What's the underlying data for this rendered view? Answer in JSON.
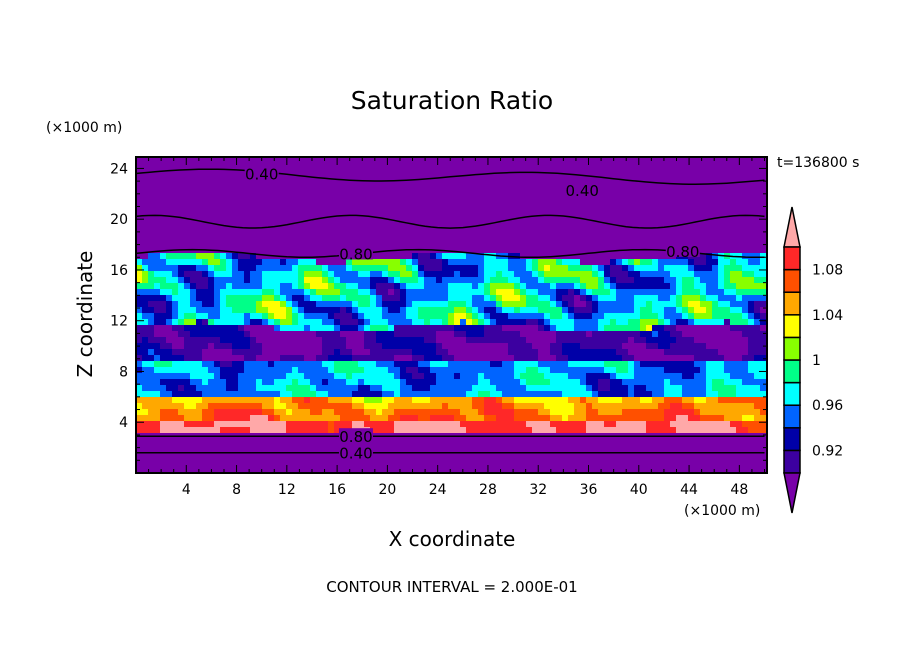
{
  "chart_data": {
    "type": "heatmap",
    "title": "Saturation Ratio",
    "xlabel": "X coordinate",
    "ylabel": "Z coordinate",
    "x_unit": "(×1000 m)",
    "y_unit": "(×1000 m)",
    "xlim": [
      0,
      50.2
    ],
    "ylim": [
      0,
      24.9
    ],
    "xticks": [
      "4",
      "8",
      "12",
      "16",
      "20",
      "24",
      "28",
      "32",
      "36",
      "40",
      "44",
      "48"
    ],
    "yticks": [
      "4",
      "8",
      "12",
      "16",
      "20",
      "24"
    ],
    "time_label": "t=136800 s",
    "footer": "CONTOUR INTERVAL = 2.000E-01",
    "colorbar": {
      "levels": [
        0.9,
        0.92,
        0.94,
        0.96,
        0.98,
        1.0,
        1.02,
        1.04,
        1.06,
        1.08,
        1.1
      ],
      "colors": [
        "#3c00a0",
        "#0000a8",
        "#0064ff",
        "#00ffff",
        "#00ff88",
        "#88ff00",
        "#ffff00",
        "#ffa800",
        "#ff5000",
        "#ff2828"
      ],
      "under_color": "#7800a8",
      "over_color": "#ffa8a8",
      "labels": [
        "1.08",
        "1.04",
        "1",
        "0.96",
        "0.92"
      ],
      "label_values": [
        1.08,
        1.04,
        1.0,
        0.96,
        0.92
      ]
    },
    "contour_labels": [
      {
        "text": "0.40",
        "x": 10,
        "z": 23.6
      },
      {
        "text": "0.40",
        "x": 35.5,
        "z": 22.3
      },
      {
        "text": "0.80",
        "x": 17.5,
        "z": 17.3
      },
      {
        "text": "0.80",
        "x": 43.5,
        "z": 17.5
      },
      {
        "text": "0.80",
        "x": 17.5,
        "z": 2.9
      },
      {
        "text": "0.40",
        "x": 17.5,
        "z": 1.6
      }
    ]
  }
}
